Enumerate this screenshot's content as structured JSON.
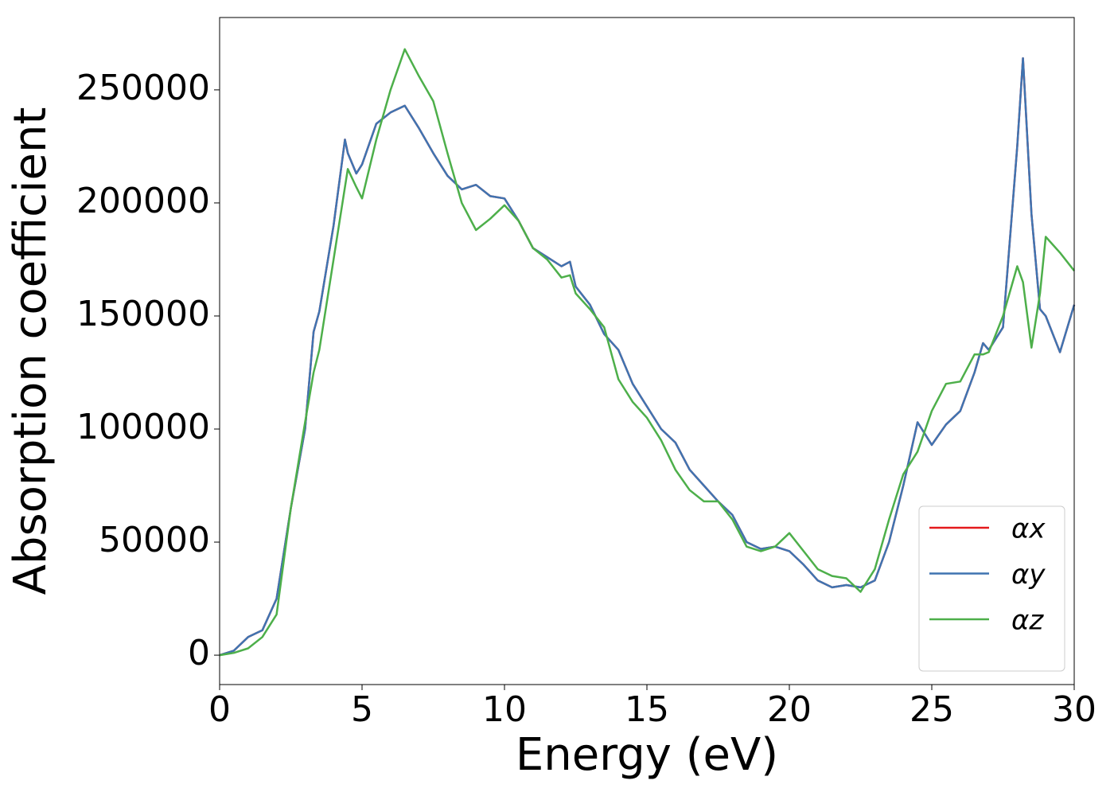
{
  "chart_data": {
    "type": "line",
    "x_label": "Energy (eV)",
    "y_label": "Absorption coefficient",
    "x": [
      0,
      0.5,
      1.0,
      1.5,
      2.0,
      2.5,
      3.0,
      3.3,
      3.5,
      4.0,
      4.4,
      4.5,
      4.8,
      5.0,
      5.5,
      6.0,
      6.5,
      7.0,
      7.5,
      8.0,
      8.5,
      9.0,
      9.5,
      10.0,
      10.5,
      11.0,
      11.5,
      12.0,
      12.3,
      12.5,
      13.0,
      13.5,
      14.0,
      14.5,
      15.0,
      15.5,
      16.0,
      16.5,
      17.0,
      17.5,
      18.0,
      18.5,
      19.0,
      19.5,
      20.0,
      20.5,
      21.0,
      21.5,
      22.0,
      22.5,
      23.0,
      23.5,
      24.0,
      24.5,
      25.0,
      25.5,
      26.0,
      26.5,
      26.8,
      27.0,
      27.5,
      28.0,
      28.2,
      28.5,
      28.8,
      29.0,
      29.5,
      30.0
    ],
    "series": [
      {
        "name": "αx",
        "color": "#e41a1c",
        "values": [
          0,
          2000,
          8000,
          11000,
          25000,
          65000,
          100000,
          143000,
          152000,
          190000,
          228000,
          222000,
          213000,
          217000,
          235000,
          240000,
          243000,
          233000,
          222000,
          212000,
          206000,
          208000,
          203000,
          202000,
          192000,
          180000,
          176000,
          172000,
          174000,
          163000,
          155000,
          142000,
          135000,
          120000,
          110000,
          100000,
          94000,
          82000,
          75000,
          68000,
          62000,
          50000,
          47000,
          48000,
          46000,
          40000,
          33000,
          30000,
          31000,
          30000,
          33000,
          50000,
          75000,
          103000,
          93000,
          102000,
          108000,
          125000,
          138000,
          135000,
          145000,
          225000,
          264000,
          195000,
          153000,
          150000,
          134000,
          155000
        ]
      },
      {
        "name": "αy",
        "color": "#3f74b1",
        "values": [
          0,
          2000,
          8000,
          11000,
          25000,
          65000,
          100000,
          143000,
          152000,
          190000,
          228000,
          222000,
          213000,
          217000,
          235000,
          240000,
          243000,
          233000,
          222000,
          212000,
          206000,
          208000,
          203000,
          202000,
          192000,
          180000,
          176000,
          172000,
          174000,
          163000,
          155000,
          142000,
          135000,
          120000,
          110000,
          100000,
          94000,
          82000,
          75000,
          68000,
          62000,
          50000,
          47000,
          48000,
          46000,
          40000,
          33000,
          30000,
          31000,
          30000,
          33000,
          50000,
          75000,
          103000,
          93000,
          102000,
          108000,
          125000,
          138000,
          135000,
          145000,
          225000,
          264000,
          195000,
          153000,
          150000,
          134000,
          155000
        ]
      },
      {
        "name": "αz",
        "color": "#4daf4a",
        "values": [
          0,
          1000,
          3000,
          8000,
          18000,
          65000,
          103000,
          125000,
          135000,
          175000,
          207000,
          215000,
          207000,
          202000,
          228000,
          250000,
          268000,
          256000,
          245000,
          222000,
          200000,
          188000,
          193000,
          199000,
          192000,
          180000,
          175000,
          167000,
          168000,
          160000,
          153000,
          145000,
          122000,
          112000,
          105000,
          95000,
          82000,
          73000,
          68000,
          68000,
          60000,
          48000,
          46000,
          48000,
          54000,
          46000,
          38000,
          35000,
          34000,
          28000,
          38000,
          60000,
          80000,
          90000,
          108000,
          120000,
          121000,
          133000,
          133000,
          134000,
          150000,
          172000,
          165000,
          136000,
          160000,
          185000,
          178000,
          170000
        ]
      }
    ],
    "xlim": [
      0,
      30
    ],
    "xticks": [
      0,
      5,
      10,
      15,
      20,
      25,
      30
    ],
    "ylim": [
      -13000,
      282000
    ],
    "yticks": [
      0,
      50000,
      100000,
      150000,
      200000,
      250000
    ],
    "grid": false,
    "legend": "lower right"
  }
}
